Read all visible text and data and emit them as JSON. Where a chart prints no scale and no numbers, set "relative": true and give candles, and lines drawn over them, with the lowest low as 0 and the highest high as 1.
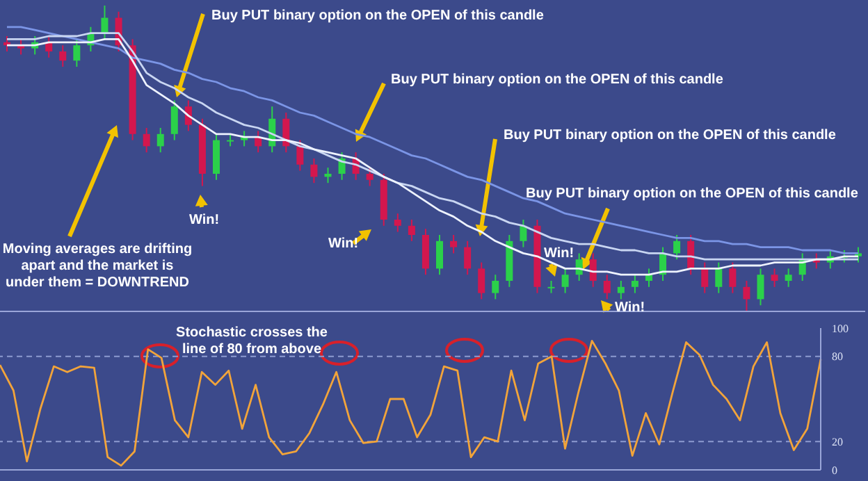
{
  "chart_data": [
    {
      "type": "candlestick",
      "relative": true,
      "legend": false,
      "tick_labels": false,
      "categories": [
        null,
        null,
        null,
        null,
        null,
        null,
        null,
        null,
        null,
        null,
        null,
        null,
        null,
        null,
        null,
        null,
        null,
        null,
        null,
        null,
        null,
        null,
        null,
        null,
        null,
        null,
        null,
        null,
        null,
        null,
        null,
        null,
        null,
        null,
        null,
        null,
        null,
        null,
        null,
        null,
        null,
        null,
        null,
        null,
        null,
        null,
        null,
        null,
        null,
        null,
        null,
        null,
        null,
        null,
        null,
        null,
        null,
        null,
        null,
        null,
        null,
        null
      ],
      "ohlc": [
        [
          0.88,
          0.9,
          0.85,
          0.87
        ],
        [
          0.87,
          0.89,
          0.84,
          0.86
        ],
        [
          0.86,
          0.9,
          0.84,
          0.88
        ],
        [
          0.88,
          0.9,
          0.83,
          0.85
        ],
        [
          0.85,
          0.87,
          0.8,
          0.82
        ],
        [
          0.82,
          0.89,
          0.8,
          0.87
        ],
        [
          0.87,
          0.93,
          0.85,
          0.91
        ],
        [
          0.91,
          1,
          0.89,
          0.96
        ],
        [
          0.96,
          0.98,
          0.85,
          0.87
        ],
        [
          0.87,
          0.89,
          0.56,
          0.58
        ],
        [
          0.58,
          0.6,
          0.52,
          0.54
        ],
        [
          0.54,
          0.6,
          0.52,
          0.58
        ],
        [
          0.58,
          0.69,
          0.56,
          0.67
        ],
        [
          0.67,
          0.69,
          0.59,
          0.61
        ],
        [
          0.61,
          0.63,
          0.41,
          0.45
        ],
        [
          0.45,
          0.58,
          0.43,
          0.56
        ],
        [
          0.56,
          0.58,
          0.54,
          0.56
        ],
        [
          0.56,
          0.59,
          0.54,
          0.57
        ],
        [
          0.57,
          0.59,
          0.52,
          0.54
        ],
        [
          0.54,
          0.67,
          0.52,
          0.63
        ],
        [
          0.63,
          0.65,
          0.52,
          0.54
        ],
        [
          0.54,
          0.56,
          0.46,
          0.48
        ],
        [
          0.48,
          0.5,
          0.42,
          0.44
        ],
        [
          0.44,
          0.47,
          0.42,
          0.45
        ],
        [
          0.45,
          0.52,
          0.43,
          0.5
        ],
        [
          0.5,
          0.52,
          0.43,
          0.45
        ],
        [
          0.45,
          0.47,
          0.41,
          0.43
        ],
        [
          0.43,
          0.45,
          0.28,
          0.3
        ],
        [
          0.3,
          0.32,
          0.26,
          0.28
        ],
        [
          0.28,
          0.3,
          0.23,
          0.25
        ],
        [
          0.25,
          0.27,
          0.12,
          0.14
        ],
        [
          0.14,
          0.25,
          0.12,
          0.23
        ],
        [
          0.23,
          0.25,
          0.19,
          0.21
        ],
        [
          0.21,
          0.23,
          0.12,
          0.14
        ],
        [
          0.14,
          0.16,
          0.04,
          0.06
        ],
        [
          0.06,
          0.12,
          0.04,
          0.1
        ],
        [
          0.1,
          0.25,
          0.08,
          0.23
        ],
        [
          0.23,
          0.3,
          0.21,
          0.28
        ],
        [
          0.28,
          0.3,
          0.06,
          0.08
        ],
        [
          0.08,
          0.1,
          0.06,
          0.08
        ],
        [
          0.08,
          0.14,
          0.06,
          0.12
        ],
        [
          0.12,
          0.19,
          0.1,
          0.17
        ],
        [
          0.17,
          0.19,
          0.08,
          0.1
        ],
        [
          0.1,
          0.12,
          0.04,
          0.06
        ],
        [
          0.06,
          0.1,
          0.04,
          0.08
        ],
        [
          0.08,
          0.12,
          0.06,
          0.1
        ],
        [
          0.1,
          0.14,
          0.08,
          0.12
        ],
        [
          0.12,
          0.21,
          0.1,
          0.19
        ],
        [
          0.19,
          0.25,
          0.17,
          0.23
        ],
        [
          0.23,
          0.25,
          0.12,
          0.14
        ],
        [
          0.14,
          0.16,
          0.06,
          0.08
        ],
        [
          0.08,
          0.16,
          0.06,
          0.14
        ],
        [
          0.14,
          0.16,
          0.06,
          0.08
        ],
        [
          0.08,
          0.1,
          0,
          0.04
        ],
        [
          0.04,
          0.14,
          0.02,
          0.12
        ],
        [
          0.12,
          0.14,
          0.08,
          0.1
        ],
        [
          0.1,
          0.14,
          0.08,
          0.12
        ],
        [
          0.12,
          0.19,
          0.1,
          0.17
        ],
        [
          0.17,
          0.19,
          0.14,
          0.16
        ],
        [
          0.16,
          0.2,
          0.14,
          0.18
        ],
        [
          0.18,
          0.2,
          0.16,
          0.18
        ],
        [
          0.18,
          0.21,
          0.16,
          0.19
        ]
      ],
      "series": [
        {
          "type": "line",
          "color": "#7b95e6",
          "values": [
            0.93,
            0.93,
            0.92,
            0.91,
            0.9,
            0.89,
            0.88,
            0.87,
            0.86,
            0.83,
            0.82,
            0.81,
            0.79,
            0.78,
            0.76,
            0.75,
            0.73,
            0.72,
            0.7,
            0.69,
            0.67,
            0.65,
            0.64,
            0.62,
            0.6,
            0.58,
            0.57,
            0.55,
            0.53,
            0.51,
            0.5,
            0.48,
            0.46,
            0.44,
            0.43,
            0.41,
            0.39,
            0.37,
            0.36,
            0.34,
            0.32,
            0.31,
            0.3,
            0.29,
            0.28,
            0.27,
            0.26,
            0.25,
            0.24,
            0.24,
            0.23,
            0.23,
            0.22,
            0.22,
            0.21,
            0.21,
            0.21,
            0.2,
            0.2,
            0.2,
            0.19,
            0.19
          ]
        },
        {
          "type": "line",
          "color": "#c9d6f2",
          "values": [
            0.89,
            0.89,
            0.89,
            0.9,
            0.9,
            0.9,
            0.91,
            0.91,
            0.91,
            0.85,
            0.78,
            0.75,
            0.73,
            0.7,
            0.68,
            0.65,
            0.63,
            0.61,
            0.6,
            0.58,
            0.56,
            0.54,
            0.53,
            0.51,
            0.49,
            0.48,
            0.46,
            0.44,
            0.42,
            0.41,
            0.39,
            0.37,
            0.36,
            0.34,
            0.32,
            0.31,
            0.29,
            0.28,
            0.26,
            0.24,
            0.23,
            0.22,
            0.22,
            0.21,
            0.2,
            0.2,
            0.19,
            0.19,
            0.18,
            0.18,
            0.17,
            0.17,
            0.17,
            0.17,
            0.17,
            0.17,
            0.17,
            0.17,
            0.17,
            0.17,
            0.17,
            0.17
          ]
        },
        {
          "type": "line",
          "color": "#eef3ff",
          "values": [
            0.87,
            0.87,
            0.87,
            0.88,
            0.88,
            0.88,
            0.88,
            0.89,
            0.89,
            0.82,
            0.74,
            0.71,
            0.68,
            0.64,
            0.61,
            0.58,
            0.58,
            0.57,
            0.57,
            0.56,
            0.56,
            0.55,
            0.53,
            0.52,
            0.51,
            0.5,
            0.47,
            0.44,
            0.42,
            0.39,
            0.36,
            0.33,
            0.31,
            0.28,
            0.26,
            0.23,
            0.21,
            0.19,
            0.18,
            0.16,
            0.14,
            0.14,
            0.13,
            0.13,
            0.12,
            0.12,
            0.12,
            0.13,
            0.13,
            0.14,
            0.14,
            0.14,
            0.15,
            0.15,
            0.15,
            0.16,
            0.16,
            0.16,
            0.17,
            0.17,
            0.18,
            0.18
          ]
        }
      ],
      "annotations": [
        "Buy PUT binary option on the OPEN of this candle",
        "Buy PUT binary option on the OPEN of this candle",
        "Buy PUT binary option on the OPEN of this candle",
        "Buy PUT binary option on the OPEN of this candle",
        "Win!",
        "Win!",
        "Win!",
        "Win!",
        "Moving averages are drifting apart and the market is under them = DOWNTREND"
      ]
    },
    {
      "type": "line",
      "legend": false,
      "tick_labels": "y",
      "categories": [
        null,
        null,
        null,
        null,
        null,
        null,
        null,
        null,
        null,
        null,
        null,
        null,
        null,
        null,
        null,
        null,
        null,
        null,
        null,
        null,
        null,
        null,
        null,
        null,
        null,
        null,
        null,
        null,
        null,
        null,
        null,
        null,
        null,
        null,
        null,
        null,
        null,
        null,
        null,
        null,
        null,
        null,
        null,
        null,
        null,
        null,
        null,
        null,
        null,
        null,
        null,
        null,
        null,
        null,
        null,
        null,
        null,
        null,
        null,
        null,
        null,
        null
      ],
      "ylim": [
        0,
        100
      ],
      "yticks": [
        0,
        20,
        80,
        100
      ],
      "ref_lines": [
        {
          "axis": "y",
          "value": 20,
          "line_style": "dashed",
          "color": "#8d9bd0"
        },
        {
          "axis": "y",
          "value": 80,
          "line_style": "dashed",
          "color": "#8d9bd0"
        }
      ],
      "series": [
        {
          "color": "#f2a43a",
          "values": [
            74,
            56,
            6,
            43,
            73,
            69,
            73,
            72,
            9,
            3,
            13,
            85,
            79,
            35,
            23,
            69,
            60,
            70,
            29,
            60,
            23,
            11,
            13,
            26,
            46,
            69,
            35,
            19,
            20,
            50,
            50,
            23,
            39,
            73,
            70,
            9,
            23,
            20,
            70,
            35,
            75,
            80,
            15,
            55,
            91,
            75,
            56,
            10,
            40,
            18,
            55,
            90,
            81,
            60,
            50,
            35,
            73,
            90,
            40,
            14,
            29,
            78
          ]
        }
      ],
      "annotations": [
        "Stochastic crosses the line of 80 from above"
      ]
    }
  ]
}
